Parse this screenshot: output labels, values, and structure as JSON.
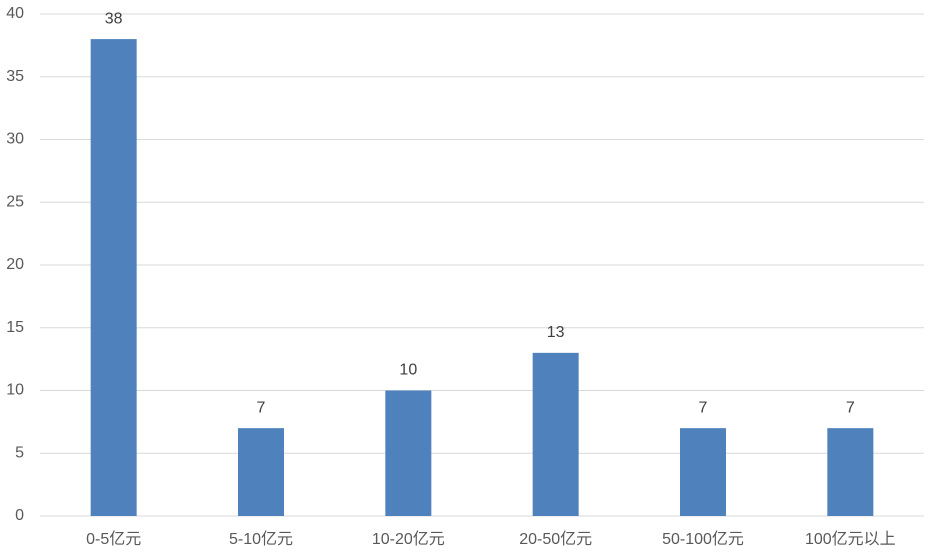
{
  "chart_data": {
    "type": "bar",
    "categories": [
      "0-5亿元",
      "5-10亿元",
      "10-20亿元",
      "20-50亿元",
      "50-100亿元",
      "100亿元以上"
    ],
    "values": [
      38,
      7,
      10,
      13,
      7,
      7
    ],
    "color": "#4f81bd",
    "ylim": [
      0,
      40
    ],
    "yticks": [
      0,
      5,
      10,
      15,
      20,
      25,
      30,
      35,
      40
    ],
    "grid": true,
    "data_labels": true
  }
}
